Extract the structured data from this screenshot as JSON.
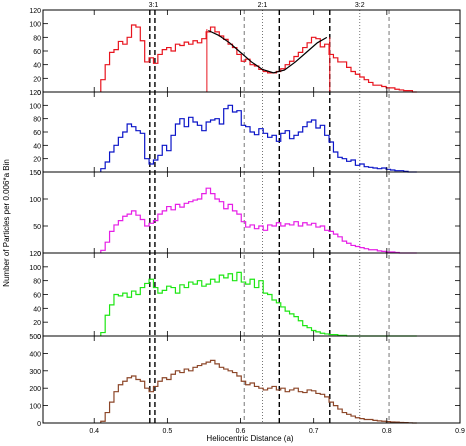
{
  "chart_data": {
    "type": "line",
    "step": true,
    "xlabel": "Heliocentric Distance (a)",
    "ylabel": "Number of Particles per 0.006*a Bin",
    "xlim": [
      0.33,
      0.9
    ],
    "xticks": [
      0.4,
      0.5,
      0.6,
      0.7,
      0.8,
      0.9
    ],
    "xtick_labels": [
      "0.4",
      "0.5",
      "0.6",
      "0.7",
      "0.8",
      "0.9"
    ],
    "resonance_labels": [
      {
        "x": 0.481,
        "text": "3:1"
      },
      {
        "x": 0.63,
        "text": "2:1"
      },
      {
        "x": 0.763,
        "text": "3:2"
      }
    ],
    "reference_lines": [
      {
        "x": 0.476,
        "style": "dashed-bold"
      },
      {
        "x": 0.483,
        "style": "dashed-bold"
      },
      {
        "x": 0.605,
        "style": "dashed"
      },
      {
        "x": 0.63,
        "style": "dotted"
      },
      {
        "x": 0.653,
        "style": "dashed-bold"
      },
      {
        "x": 0.722,
        "style": "dashed-bold"
      },
      {
        "x": 0.763,
        "style": "dotted"
      },
      {
        "x": 0.803,
        "style": "dashed"
      }
    ],
    "panels": [
      {
        "color": "#e8141e",
        "ylim": [
          0,
          120
        ],
        "yticks": [
          0,
          20,
          40,
          60,
          80,
          100,
          120
        ],
        "x": [
          0.412,
          0.418,
          0.424,
          0.43,
          0.436,
          0.442,
          0.448,
          0.454,
          0.46,
          0.466,
          0.472,
          0.478,
          0.484,
          0.49,
          0.496,
          0.502,
          0.508,
          0.514,
          0.52,
          0.526,
          0.532,
          0.538,
          0.544,
          0.55,
          0.556,
          0.562,
          0.568,
          0.574,
          0.58,
          0.586,
          0.592,
          0.598,
          0.604,
          0.61,
          0.616,
          0.622,
          0.628,
          0.634,
          0.64,
          0.646,
          0.652,
          0.658,
          0.664,
          0.67,
          0.676,
          0.682,
          0.688,
          0.694,
          0.7,
          0.706,
          0.712,
          0.718,
          0.724,
          0.73,
          0.736,
          0.742,
          0.748,
          0.754,
          0.76,
          0.766,
          0.772,
          0.778,
          0.784,
          0.79,
          0.796,
          0.802,
          0.808,
          0.814,
          0.82,
          0.826,
          0.832,
          0.838
        ],
        "y": [
          18,
          40,
          58,
          62,
          74,
          70,
          80,
          98,
          95,
          75,
          44,
          50,
          42,
          55,
          62,
          65,
          60,
          70,
          68,
          73,
          70,
          75,
          72,
          78,
          88,
          95,
          88,
          82,
          77,
          70,
          65,
          55,
          45,
          48,
          40,
          38,
          33,
          30,
          28,
          28,
          30,
          34,
          40,
          45,
          52,
          58,
          65,
          72,
          80,
          78,
          66,
          70,
          55,
          50,
          44,
          44,
          36,
          30,
          26,
          22,
          18,
          14,
          10,
          10,
          8,
          6,
          6,
          4,
          3,
          2,
          2,
          0
        ],
        "fit": {
          "x": [
            0.556,
            0.57,
            0.585,
            0.6,
            0.615,
            0.63,
            0.645,
            0.66,
            0.675,
            0.69,
            0.705,
            0.718
          ],
          "y": [
            90,
            83,
            72,
            58,
            44,
            33,
            28,
            32,
            44,
            58,
            72,
            80
          ]
        },
        "markers": [
          {
            "x": 0.554,
            "y0": 0,
            "y1": 92
          },
          {
            "x": 0.722,
            "y0": 0,
            "y1": 80
          }
        ]
      },
      {
        "color": "#0a14c8",
        "ylim": [
          0,
          120
        ],
        "yticks": [
          0,
          20,
          40,
          60,
          80,
          100,
          120
        ],
        "x": [
          0.412,
          0.418,
          0.424,
          0.43,
          0.436,
          0.442,
          0.448,
          0.454,
          0.46,
          0.466,
          0.472,
          0.478,
          0.484,
          0.49,
          0.496,
          0.502,
          0.508,
          0.514,
          0.52,
          0.526,
          0.532,
          0.538,
          0.544,
          0.55,
          0.556,
          0.562,
          0.568,
          0.574,
          0.58,
          0.586,
          0.592,
          0.598,
          0.604,
          0.61,
          0.616,
          0.622,
          0.628,
          0.634,
          0.64,
          0.646,
          0.652,
          0.658,
          0.664,
          0.67,
          0.676,
          0.682,
          0.688,
          0.694,
          0.7,
          0.706,
          0.712,
          0.718,
          0.724,
          0.73,
          0.736,
          0.742,
          0.748,
          0.754,
          0.76,
          0.766,
          0.772,
          0.778,
          0.784,
          0.79,
          0.796,
          0.802,
          0.808,
          0.814,
          0.82,
          0.826,
          0.832,
          0.838
        ],
        "y": [
          5,
          15,
          30,
          40,
          52,
          60,
          72,
          68,
          62,
          58,
          20,
          12,
          18,
          25,
          40,
          32,
          55,
          72,
          80,
          68,
          82,
          75,
          70,
          62,
          75,
          78,
          80,
          72,
          95,
          100,
          90,
          92,
          70,
          68,
          60,
          56,
          65,
          58,
          52,
          55,
          46,
          58,
          62,
          50,
          55,
          60,
          68,
          75,
          78,
          66,
          70,
          55,
          45,
          30,
          22,
          20,
          16,
          18,
          10,
          12,
          8,
          7,
          6,
          5,
          6,
          4,
          3,
          2,
          2,
          1,
          0,
          0
        ]
      },
      {
        "color": "#e61ee6",
        "ylim": [
          0,
          150
        ],
        "yticks": [
          0,
          50,
          100,
          150
        ],
        "x": [
          0.412,
          0.418,
          0.424,
          0.43,
          0.436,
          0.442,
          0.448,
          0.454,
          0.46,
          0.466,
          0.472,
          0.478,
          0.484,
          0.49,
          0.496,
          0.502,
          0.508,
          0.514,
          0.52,
          0.526,
          0.532,
          0.538,
          0.544,
          0.55,
          0.556,
          0.562,
          0.568,
          0.574,
          0.58,
          0.586,
          0.592,
          0.598,
          0.604,
          0.61,
          0.616,
          0.622,
          0.628,
          0.634,
          0.64,
          0.646,
          0.652,
          0.658,
          0.664,
          0.67,
          0.676,
          0.682,
          0.688,
          0.694,
          0.7,
          0.706,
          0.712,
          0.718,
          0.724,
          0.73,
          0.736,
          0.742,
          0.748,
          0.754,
          0.76,
          0.766,
          0.772,
          0.778,
          0.784,
          0.79,
          0.796,
          0.802,
          0.808,
          0.814,
          0.82,
          0.826,
          0.832,
          0.838
        ],
        "y": [
          5,
          20,
          40,
          52,
          60,
          68,
          72,
          78,
          70,
          62,
          50,
          55,
          60,
          72,
          78,
          86,
          80,
          90,
          85,
          92,
          95,
          98,
          100,
          110,
          120,
          110,
          100,
          95,
          82,
          90,
          78,
          72,
          58,
          48,
          52,
          45,
          50,
          42,
          52,
          50,
          56,
          50,
          54,
          52,
          58,
          50,
          56,
          52,
          55,
          48,
          50,
          42,
          40,
          35,
          30,
          22,
          18,
          14,
          12,
          10,
          8,
          6,
          6,
          4,
          3,
          2,
          2,
          1,
          0,
          0,
          0,
          0
        ]
      },
      {
        "color": "#1ee614",
        "ylim": [
          0,
          120
        ],
        "yticks": [
          0,
          20,
          40,
          60,
          80,
          100,
          120
        ],
        "x": [
          0.412,
          0.418,
          0.424,
          0.43,
          0.436,
          0.442,
          0.448,
          0.454,
          0.46,
          0.466,
          0.472,
          0.478,
          0.484,
          0.49,
          0.496,
          0.502,
          0.508,
          0.514,
          0.52,
          0.526,
          0.532,
          0.538,
          0.544,
          0.55,
          0.556,
          0.562,
          0.568,
          0.574,
          0.58,
          0.586,
          0.592,
          0.598,
          0.604,
          0.61,
          0.616,
          0.622,
          0.628,
          0.634,
          0.64,
          0.646,
          0.652,
          0.658,
          0.664,
          0.67,
          0.676,
          0.682,
          0.688,
          0.694,
          0.7,
          0.706,
          0.712,
          0.718,
          0.724,
          0.73,
          0.736,
          0.742,
          0.748,
          0.754,
          0.76,
          0.766,
          0.772,
          0.778,
          0.784,
          0.79,
          0.796,
          0.802,
          0.808,
          0.814,
          0.82,
          0.826,
          0.832,
          0.838
        ],
        "y": [
          5,
          30,
          45,
          60,
          58,
          62,
          56,
          65,
          60,
          70,
          76,
          82,
          70,
          62,
          66,
          72,
          70,
          62,
          74,
          70,
          78,
          75,
          80,
          72,
          75,
          82,
          78,
          88,
          84,
          90,
          80,
          92,
          78,
          75,
          82,
          70,
          80,
          62,
          60,
          52,
          48,
          42,
          36,
          32,
          28,
          22,
          15,
          12,
          8,
          6,
          4,
          3,
          2,
          2,
          1,
          1,
          0,
          0,
          0,
          0,
          0,
          0,
          0,
          0,
          0,
          0,
          0,
          0,
          0,
          0,
          0,
          0
        ]
      },
      {
        "color": "#8c4628",
        "ylim": [
          0,
          500
        ],
        "yticks": [
          0,
          100,
          200,
          300,
          400,
          500
        ],
        "x": [
          0.412,
          0.418,
          0.424,
          0.43,
          0.436,
          0.442,
          0.448,
          0.454,
          0.46,
          0.466,
          0.472,
          0.478,
          0.484,
          0.49,
          0.496,
          0.502,
          0.508,
          0.514,
          0.52,
          0.526,
          0.532,
          0.538,
          0.544,
          0.55,
          0.556,
          0.562,
          0.568,
          0.574,
          0.58,
          0.586,
          0.592,
          0.598,
          0.604,
          0.61,
          0.616,
          0.622,
          0.628,
          0.634,
          0.64,
          0.646,
          0.652,
          0.658,
          0.664,
          0.67,
          0.676,
          0.682,
          0.688,
          0.694,
          0.7,
          0.706,
          0.712,
          0.718,
          0.724,
          0.73,
          0.736,
          0.742,
          0.748,
          0.754,
          0.76,
          0.766,
          0.772,
          0.778,
          0.784,
          0.79,
          0.796,
          0.802,
          0.808,
          0.814,
          0.82,
          0.826,
          0.832,
          0.838
        ],
        "y": [
          10,
          60,
          120,
          180,
          220,
          240,
          260,
          270,
          250,
          240,
          200,
          180,
          210,
          240,
          260,
          250,
          280,
          300,
          290,
          310,
          300,
          320,
          330,
          340,
          350,
          360,
          340,
          320,
          310,
          300,
          290,
          270,
          240,
          220,
          230,
          210,
          200,
          190,
          200,
          210,
          190,
          200,
          180,
          190,
          200,
          180,
          175,
          190,
          185,
          170,
          165,
          150,
          120,
          100,
          80,
          60,
          50,
          40,
          30,
          25,
          20,
          20,
          15,
          12,
          10,
          8,
          6,
          5,
          3,
          2,
          1,
          0
        ]
      }
    ]
  }
}
